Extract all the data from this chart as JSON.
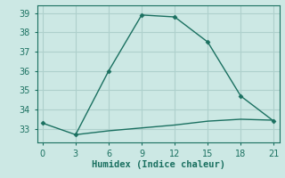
{
  "line1_x": [
    0,
    3,
    6,
    9,
    12,
    15,
    18,
    21
  ],
  "line1_y": [
    33.3,
    32.7,
    36.0,
    38.9,
    38.8,
    37.5,
    34.7,
    33.4
  ],
  "line2_x": [
    3,
    6,
    9,
    12,
    15,
    18,
    21
  ],
  "line2_y": [
    32.7,
    32.9,
    33.05,
    33.2,
    33.4,
    33.5,
    33.45
  ],
  "line_color": "#1a7060",
  "bg_color": "#cce8e4",
  "grid_color": "#aed0cc",
  "xlabel": "Humidex (Indice chaleur)",
  "xticks": [
    0,
    3,
    6,
    9,
    12,
    15,
    18,
    21
  ],
  "yticks": [
    33,
    34,
    35,
    36,
    37,
    38,
    39
  ],
  "xlim": [
    -0.5,
    21.5
  ],
  "ylim": [
    32.3,
    39.4
  ],
  "marker": "D",
  "markersize": 2.5,
  "linewidth": 1.0,
  "xlabel_fontsize": 7.5,
  "tick_fontsize": 7
}
